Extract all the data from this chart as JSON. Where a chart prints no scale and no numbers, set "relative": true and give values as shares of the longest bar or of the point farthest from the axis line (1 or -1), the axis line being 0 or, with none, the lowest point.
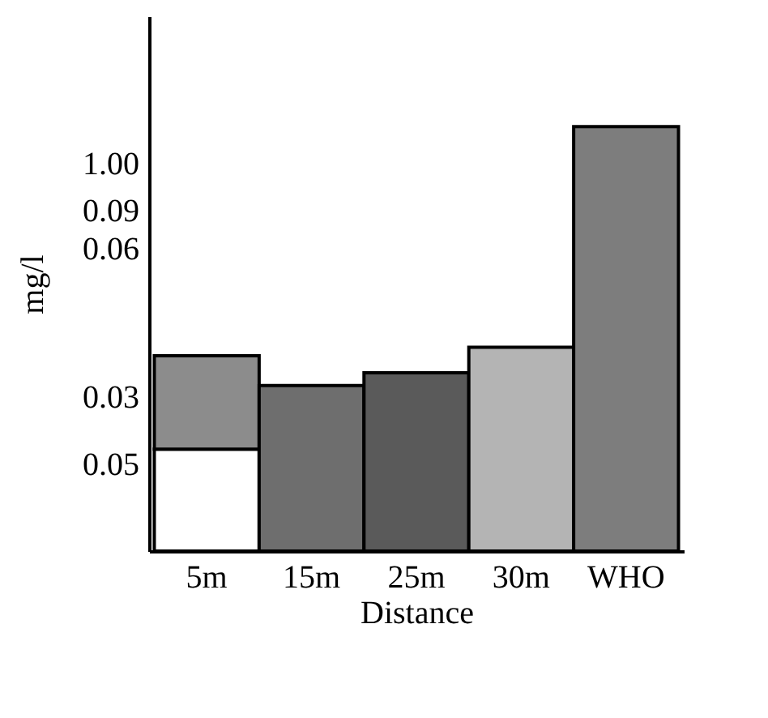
{
  "chart_data": {
    "type": "bar",
    "relative": true,
    "stacked": true,
    "xlabel": "Distance",
    "ylabel": "mg/l",
    "categories": [
      "5m",
      "15m",
      "25m",
      "30m",
      "WHO"
    ],
    "series": [
      {
        "color": "#ffffff",
        "values": [
          0.24,
          null,
          null,
          null,
          null
        ]
      },
      {
        "colors": [
          "#8c8c8c",
          "#6e6e6e",
          "#5a5a5a",
          "#b4b4b4",
          "#7d7d7d"
        ],
        "values": [
          0.22,
          0.39,
          0.42,
          0.48,
          1
        ]
      }
    ],
    "annotations": [
      "0.05",
      "0.03",
      "0.06",
      "0.09",
      "1.00"
    ],
    "grid": false
  }
}
